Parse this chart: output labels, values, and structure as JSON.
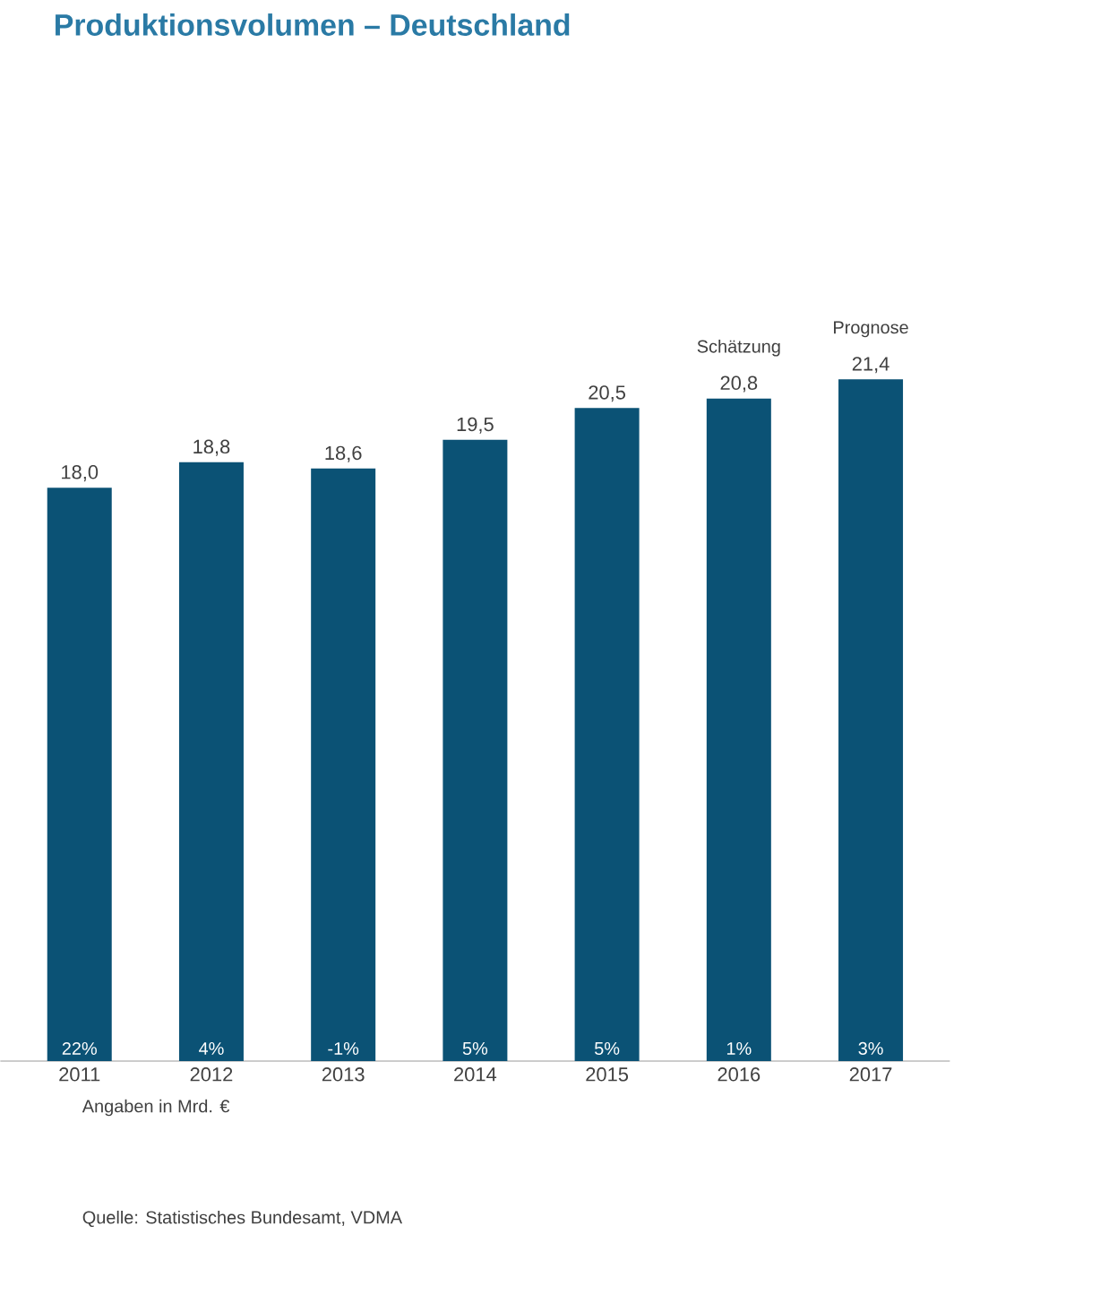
{
  "chart_data": {
    "type": "bar",
    "title": "Produktionsvolumen – Deutschland",
    "categories": [
      "2011",
      "2012",
      "2013",
      "2014",
      "2015",
      "2016",
      "2017"
    ],
    "values": [
      18.0,
      18.8,
      18.6,
      19.5,
      20.5,
      20.8,
      21.4
    ],
    "value_labels": [
      "18,0",
      "18,8",
      "18,6",
      "19,5",
      "20,5",
      "20,8",
      "21,4"
    ],
    "color": "#0b5275",
    "annotations": [
      {
        "text": "22%",
        "x": "2011",
        "y": 0
      },
      {
        "text": "4%",
        "x": "2012",
        "y": 0
      },
      {
        "text": "-1%",
        "x": "2013",
        "y": 0
      },
      {
        "text": "5%",
        "x": "2014",
        "y": 0
      },
      {
        "text": "5%",
        "x": "2015",
        "y": 0
      },
      {
        "text": "1%",
        "x": "2016",
        "y": 0
      },
      {
        "text": "3%",
        "x": "2017",
        "y": 0
      },
      {
        "text": "Schätzung",
        "x": "2016",
        "y": 20.8
      },
      {
        "text": "Prognose",
        "x": "2017",
        "y": 21.4
      },
      "Angaben in Mrd. €",
      "Quelle: Statistisches Bundesamt, VDMA"
    ]
  }
}
